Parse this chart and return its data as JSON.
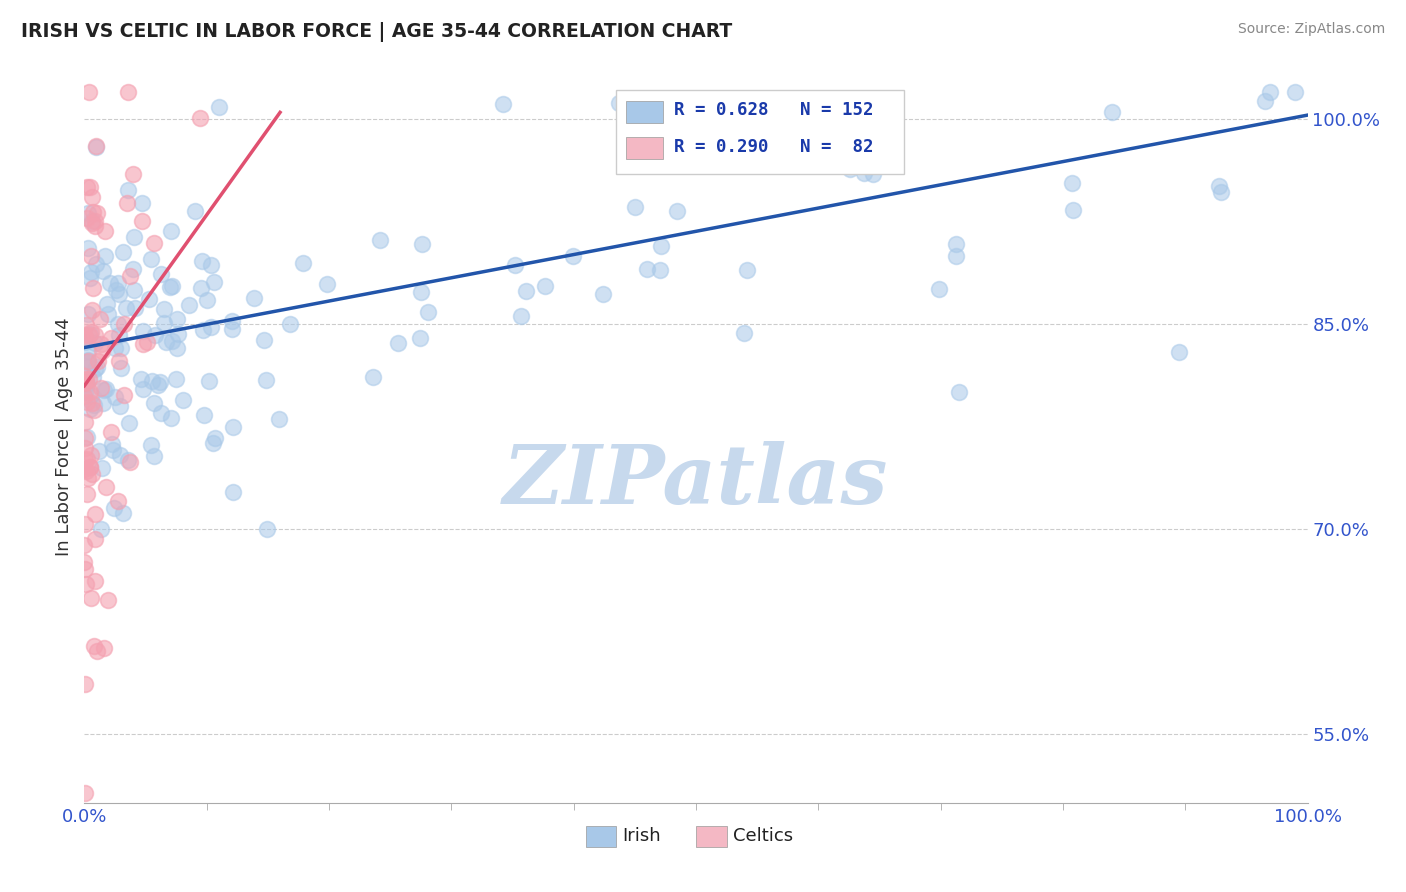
{
  "title": "IRISH VS CELTIC IN LABOR FORCE | AGE 35-44 CORRELATION CHART",
  "source_text": "Source: ZipAtlas.com",
  "ylabel": "In Labor Force | Age 35-44",
  "xlim": [
    0.0,
    1.0
  ],
  "ylim": [
    0.5,
    1.035
  ],
  "yticks": [
    0.55,
    0.7,
    0.85,
    1.0
  ],
  "ytick_labels": [
    "55.0%",
    "70.0%",
    "85.0%",
    "100.0%"
  ],
  "irish_R": 0.628,
  "irish_N": 152,
  "celtics_R": 0.29,
  "celtics_N": 82,
  "irish_color": "#a8c8e8",
  "celtics_color": "#f4a0b0",
  "irish_line_color": "#2255aa",
  "celtics_line_color": "#e05070",
  "legend_box_irish": "#a8c8e8",
  "legend_box_celtics": "#f4b8c4",
  "watermark": "ZIPatlas",
  "watermark_color_r": 0.78,
  "watermark_color_g": 0.85,
  "watermark_color_b": 0.93,
  "background_color": "#ffffff",
  "grid_color": "#cccccc",
  "title_color": "#222222",
  "axis_label_color": "#333333",
  "tick_label_color": "#3355cc",
  "source_color": "#888888",
  "irish_trend_x0": 0.0,
  "irish_trend_y0": 0.833,
  "irish_trend_x1": 1.0,
  "irish_trend_y1": 1.003,
  "celtics_trend_x0": 0.0,
  "celtics_trend_y0": 0.805,
  "celtics_trend_x1": 0.16,
  "celtics_trend_y1": 1.005
}
